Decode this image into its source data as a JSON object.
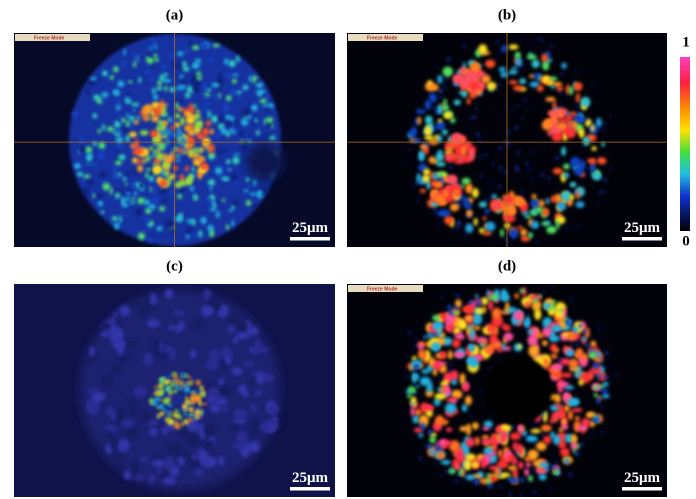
{
  "panels": [
    {
      "label": "(a)",
      "tag": "Freeze Mode",
      "scale_bar": "25μm"
    },
    {
      "label": "(b)",
      "tag": "Freeze Mode",
      "scale_bar": "25μm"
    },
    {
      "label": "(c)",
      "scale_bar": "25μm"
    },
    {
      "label": "(d)",
      "tag": "Freeze Mode",
      "scale_bar": "25μm"
    }
  ],
  "colorbar": {
    "max": 1,
    "min": 0
  }
}
